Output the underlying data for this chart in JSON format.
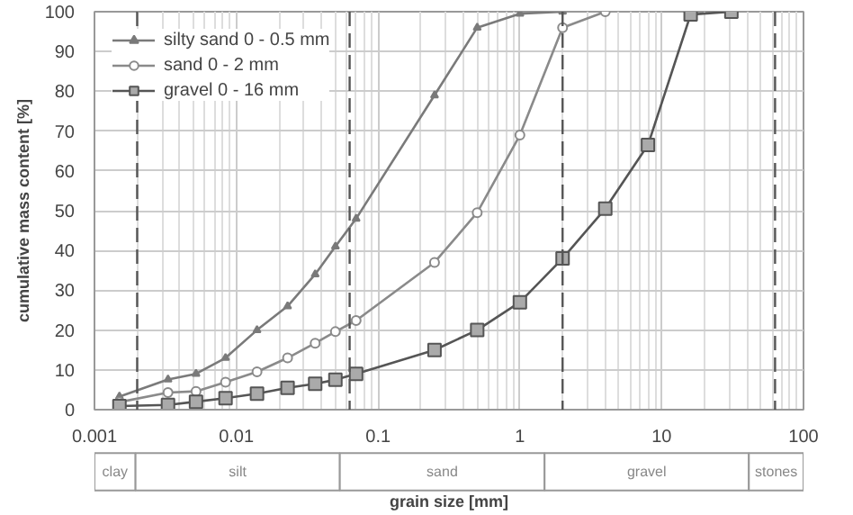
{
  "chart_data": {
    "type": "line",
    "xlabel": "grain size [mm]",
    "ylabel": "cumulative mass content [%]",
    "log": "x",
    "xlim": [
      0.001,
      100
    ],
    "xticks": [
      0.001,
      0.01,
      0.1,
      1,
      10,
      100
    ],
    "ylim": [
      0,
      100
    ],
    "yticks": [
      0,
      10,
      20,
      30,
      40,
      50,
      60,
      70,
      80,
      90,
      100
    ],
    "grid": true,
    "legend": "top left",
    "line_style": "solid",
    "series": [
      {
        "name": "silty sand 0 - 0.5 mm",
        "color": "#7a7a7a",
        "marker": "triangle",
        "x": [
          0.0015,
          0.0033,
          0.0052,
          0.0084,
          0.014,
          0.023,
          0.036,
          0.05,
          0.07,
          0.25,
          0.5,
          1,
          2
        ],
        "values": [
          3.3,
          7.6,
          9,
          13,
          20,
          26,
          34,
          41,
          48,
          79,
          96,
          99.5,
          100
        ]
      },
      {
        "name": "sand 0 - 2 mm",
        "color": "#8a8a8a",
        "marker": "circle",
        "x": [
          0.0015,
          0.0033,
          0.0052,
          0.0084,
          0.014,
          0.023,
          0.036,
          0.05,
          0.07,
          0.25,
          0.5,
          1,
          2,
          4
        ],
        "values": [
          1.9,
          4.3,
          4.6,
          6.9,
          9.5,
          13,
          16.7,
          19.6,
          22.4,
          37,
          49.5,
          69,
          96,
          100
        ]
      },
      {
        "name": "gravel 0 - 16 mm",
        "color": "#555555",
        "marker": "square",
        "x": [
          0.0015,
          0.0033,
          0.0052,
          0.0084,
          0.014,
          0.023,
          0.036,
          0.05,
          0.07,
          0.25,
          0.5,
          1,
          2,
          4,
          8,
          16,
          31
        ],
        "values": [
          0.9,
          1.2,
          2,
          2.9,
          4,
          5.5,
          6.5,
          7.5,
          9,
          15,
          20,
          27,
          38,
          50.5,
          66.5,
          99.3,
          100
        ]
      }
    ],
    "ref_lines": [
      {
        "axis": "x",
        "value": 0.002,
        "color": "#555555",
        "line_style": "dashed"
      },
      {
        "axis": "x",
        "value": 0.063,
        "color": "#555555",
        "line_style": "dashed"
      },
      {
        "axis": "x",
        "value": 2,
        "color": "#555555",
        "line_style": "dashed"
      },
      {
        "axis": "x",
        "value": 63,
        "color": "#555555",
        "line_style": "dashed"
      }
    ],
    "annotations": [
      "clay",
      "silt",
      "sand",
      "gravel",
      "stones"
    ]
  }
}
